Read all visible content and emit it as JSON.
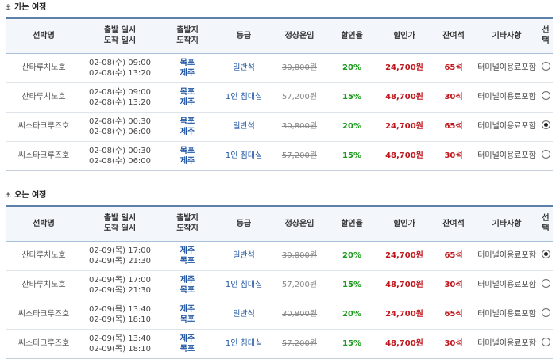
{
  "outbound": {
    "title": "가는 여정",
    "rows": [
      {
        "ship": "산타루치노호",
        "dep": "02-08(수) 09:00",
        "arr": "02-08(수) 13:20",
        "from": "목포",
        "to": "제주",
        "grade": "일반석",
        "normal": "30,800원",
        "rate": "20%",
        "price": "24,700원",
        "seats": "65석",
        "note": "터미널이용료포함",
        "selected": false
      },
      {
        "ship": "산타루치노호",
        "dep": "02-08(수) 09:00",
        "arr": "02-08(수) 13:20",
        "from": "목포",
        "to": "제주",
        "grade": "1인 침대실",
        "normal": "57,200원",
        "rate": "15%",
        "price": "48,700원",
        "seats": "30석",
        "note": "터미널이용료포함",
        "selected": false
      },
      {
        "ship": "씨스타크루즈호",
        "dep": "02-08(수) 00:30",
        "arr": "02-08(수) 06:00",
        "from": "목포",
        "to": "제주",
        "grade": "일반석",
        "normal": "30,800원",
        "rate": "20%",
        "price": "24,700원",
        "seats": "65석",
        "note": "터미널이용료포함",
        "selected": true
      },
      {
        "ship": "씨스타크루즈호",
        "dep": "02-08(수) 00:30",
        "arr": "02-08(수) 06:00",
        "from": "목포",
        "to": "제주",
        "grade": "1인 침대실",
        "normal": "57,200원",
        "rate": "15%",
        "price": "48,700원",
        "seats": "30석",
        "note": "터미널이용료포함",
        "selected": false
      }
    ]
  },
  "inbound": {
    "title": "오는 여정",
    "rows": [
      {
        "ship": "산타루치노호",
        "dep": "02-09(목) 17:00",
        "arr": "02-09(목) 21:30",
        "from": "제주",
        "to": "목포",
        "grade": "일반석",
        "normal": "30,800원",
        "rate": "20%",
        "price": "24,700원",
        "seats": "65석",
        "note": "터미널이용료포함",
        "selected": true
      },
      {
        "ship": "산타루치노호",
        "dep": "02-09(목) 17:00",
        "arr": "02-09(목) 21:30",
        "from": "제주",
        "to": "목포",
        "grade": "1인 침대실",
        "normal": "57,200원",
        "rate": "15%",
        "price": "48,700원",
        "seats": "30석",
        "note": "터미널이용료포함",
        "selected": false
      },
      {
        "ship": "씨스타크루즈호",
        "dep": "02-09(목) 13:40",
        "arr": "02-09(목) 18:10",
        "from": "제주",
        "to": "목포",
        "grade": "일반석",
        "normal": "30,800원",
        "rate": "20%",
        "price": "24,700원",
        "seats": "65석",
        "note": "터미널이용료포함",
        "selected": false
      },
      {
        "ship": "씨스타크루즈호",
        "dep": "02-09(목) 13:40",
        "arr": "02-09(목) 18:10",
        "from": "제주",
        "to": "목포",
        "grade": "1인 침대실",
        "normal": "57,200원",
        "rate": "15%",
        "price": "48,700원",
        "seats": "30석",
        "note": "터미널이용료포함",
        "selected": false
      }
    ]
  },
  "headers": {
    "ship": "선박명",
    "time1": "출발 일시",
    "time2": "도착 일시",
    "port1": "출발지",
    "port2": "도착지",
    "grade": "등급",
    "normal": "정상운임",
    "rate": "할인율",
    "price": "할인가",
    "seats": "잔여석",
    "note": "기타사항",
    "select": "선택"
  },
  "icons": {
    "section": "anchor-icon",
    "select": "radio-icon"
  }
}
